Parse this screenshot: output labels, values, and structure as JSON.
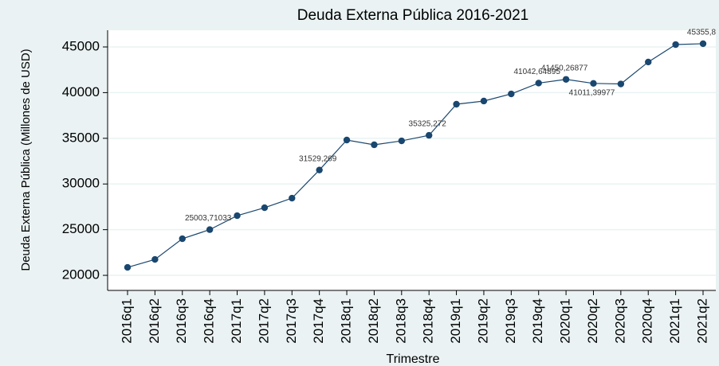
{
  "chart_data": {
    "type": "line",
    "title": "Deuda Externa Pública 2016-2021",
    "x_label": "Trimestre",
    "y_label": "Deuda Externa Pública (Millones de USD)",
    "categories": [
      "2016q1",
      "2016q2",
      "2016q3",
      "2016q4",
      "2017q1",
      "2017q2",
      "2017q3",
      "2017q4",
      "2018q1",
      "2018q2",
      "2018q3",
      "2018q4",
      "2019q1",
      "2019q2",
      "2019q3",
      "2019q4",
      "2020q1",
      "2020q2",
      "2020q3",
      "2020q4",
      "2021q1",
      "2021q2"
    ],
    "series": [
      {
        "name": "Deuda Externa Pública",
        "color": "#1a476f",
        "values": [
          20870,
          21740,
          24010,
          25003.71033,
          26530,
          27400,
          28450,
          31529.269,
          34810,
          34290,
          34720,
          35325.272,
          38730,
          39080,
          39860,
          41042.64895,
          41450.26877,
          41011.39977,
          40950,
          43350,
          45260,
          45355.8
        ],
        "value_labels": [
          null,
          null,
          null,
          "25003,71033",
          null,
          null,
          null,
          "31529,269",
          null,
          null,
          null,
          "35325,272",
          null,
          null,
          null,
          "41042,64895",
          "41450,26877",
          "41011,39977",
          null,
          null,
          null,
          "45355,8"
        ]
      }
    ],
    "ylim": [
      18350,
      46830
    ],
    "yticks": [
      20000,
      25000,
      30000,
      35000,
      40000,
      45000
    ],
    "grid": true
  }
}
